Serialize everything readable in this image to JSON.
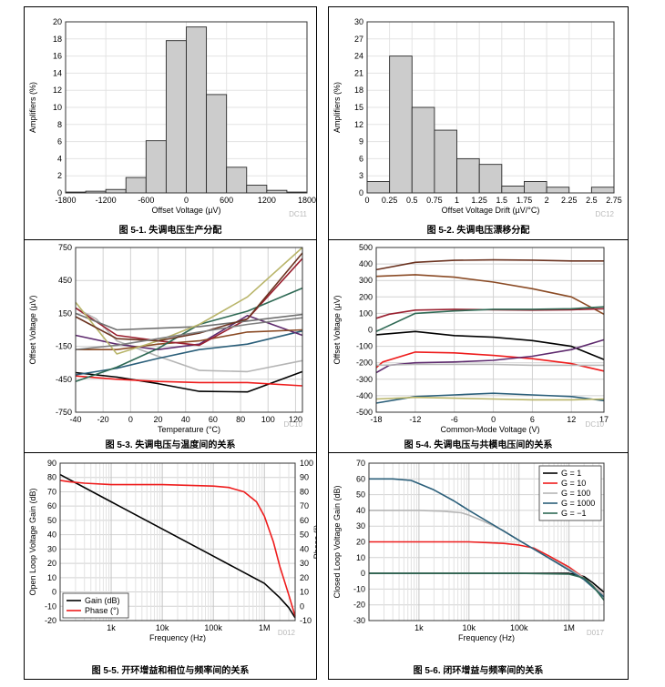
{
  "charts": [
    {
      "type": "bar",
      "name": "hist-offset",
      "title": "图 5-1. 失调电压生产分配",
      "xlabel": "Offset Voltage (µV)",
      "ylabel": "Amplifiers (%)",
      "watermark": "DC11",
      "bin_edges": [
        -1800,
        -1500,
        -1200,
        -900,
        -600,
        -300,
        0,
        300,
        600,
        900,
        1200,
        1500,
        1800
      ],
      "values": [
        0.1,
        0.2,
        0.4,
        1.8,
        6.1,
        17.8,
        19.4,
        11.5,
        3.0,
        0.9,
        0.3,
        0.1
      ],
      "xlim": [
        -1800,
        1800
      ],
      "ylim": [
        0,
        20
      ],
      "xticks": [
        -1800,
        -1200,
        -600,
        0,
        600,
        1200,
        1800
      ],
      "xtick_labels": [
        "-1800",
        "-1200",
        "-600",
        "0",
        "600",
        "1200",
        "1800"
      ],
      "yticks": [
        0,
        2,
        4,
        6,
        8,
        10,
        12,
        14,
        16,
        18,
        20
      ],
      "ytick_labels": [
        "0",
        "2",
        "4",
        "6",
        "8",
        "10",
        "12",
        "14",
        "16",
        "18",
        "20"
      ]
    },
    {
      "type": "bar",
      "name": "hist-drift",
      "title": "图 5-2. 失调电压漂移分配",
      "xlabel": "Offset Voltage Drift (µV/°C)",
      "ylabel": "Amplifiers (%)",
      "watermark": "DC12",
      "bin_edges": [
        0,
        0.25,
        0.5,
        0.75,
        1,
        1.25,
        1.5,
        1.75,
        2,
        2.25,
        2.5,
        2.75
      ],
      "values": [
        2,
        24,
        15,
        11,
        6,
        5,
        1.2,
        2,
        1,
        0,
        1
      ],
      "xlim": [
        0,
        2.75
      ],
      "ylim": [
        0,
        30
      ],
      "xticks": [
        0,
        0.25,
        0.5,
        0.75,
        1,
        1.25,
        1.5,
        1.75,
        2,
        2.25,
        2.5,
        2.75
      ],
      "xtick_labels": [
        "0",
        "0.25",
        "0.5",
        "0.75",
        "1",
        "1.25",
        "1.5",
        "1.75",
        "2",
        "2.25",
        "2.5",
        "2.75"
      ],
      "yticks": [
        0,
        3,
        6,
        9,
        12,
        15,
        18,
        21,
        24,
        27,
        30
      ],
      "ytick_labels": [
        "0",
        "3",
        "6",
        "9",
        "12",
        "15",
        "18",
        "21",
        "24",
        "27",
        "30"
      ]
    },
    {
      "type": "line",
      "name": "offset-vs-temp",
      "title": "图 5-3. 失调电压与温度间的关系",
      "xlabel": "Temperature (°C)",
      "ylabel": "Offset Voltage (µV)",
      "watermark": "DC10",
      "xlim": [
        -40,
        125
      ],
      "ylim": [
        -750,
        750
      ],
      "xticks": [
        -40,
        -20,
        0,
        20,
        40,
        60,
        80,
        100,
        120
      ],
      "xtick_labels": [
        "-40",
        "-20",
        "0",
        "20",
        "40",
        "60",
        "80",
        "100",
        "120"
      ],
      "yticks": [
        -750,
        -450,
        -150,
        150,
        450,
        750
      ],
      "ytick_labels": [
        "-750",
        "-450",
        "-150",
        "150",
        "450",
        "750"
      ],
      "series": [
        {
          "color": "#000000",
          "x": [
            -40,
            -10,
            20,
            50,
            85,
            125
          ],
          "y": [
            -390,
            -430,
            -490,
            -560,
            -565,
            -380
          ]
        },
        {
          "color": "#ee1c1c",
          "x": [
            -40,
            -10,
            20,
            50,
            85,
            125
          ],
          "y": [
            -420,
            -450,
            -470,
            -480,
            -480,
            -510
          ]
        },
        {
          "color": "#b5b5b5",
          "x": [
            -40,
            -25,
            -10,
            20,
            50,
            85,
            125
          ],
          "y": [
            200,
            100,
            -100,
            -240,
            -370,
            -380,
            -280
          ]
        },
        {
          "color": "#2b5f7a",
          "x": [
            -40,
            -10,
            20,
            50,
            85,
            125
          ],
          "y": [
            -410,
            -350,
            -260,
            -180,
            -130,
            -10
          ]
        },
        {
          "color": "#5e2a6e",
          "x": [
            -40,
            -10,
            20,
            50,
            85,
            125
          ],
          "y": [
            -50,
            -130,
            -180,
            -130,
            130,
            -50
          ]
        },
        {
          "color": "#8a4a24",
          "x": [
            -40,
            -10,
            20,
            50,
            85,
            125
          ],
          "y": [
            -180,
            -180,
            -130,
            -100,
            -20,
            0
          ]
        },
        {
          "color": "#9a2030",
          "x": [
            -40,
            -10,
            20,
            50,
            85,
            125
          ],
          "y": [
            200,
            -50,
            -100,
            -140,
            100,
            650
          ]
        },
        {
          "color": "#2f6a55",
          "x": [
            -40,
            -10,
            20,
            50,
            85,
            125
          ],
          "y": [
            -470,
            -340,
            -170,
            50,
            170,
            380
          ]
        },
        {
          "color": "#707070",
          "x": [
            -40,
            -10,
            20,
            50,
            85,
            125
          ],
          "y": [
            150,
            0,
            15,
            30,
            80,
            140
          ]
        },
        {
          "color": "#b9b56a",
          "x": [
            -40,
            -10,
            20,
            50,
            85,
            125
          ],
          "y": [
            250,
            -220,
            -100,
            50,
            300,
            750
          ]
        },
        {
          "color": "#6b3320",
          "x": [
            -40,
            -10,
            20,
            50,
            85,
            125
          ],
          "y": [
            120,
            -80,
            -100,
            -30,
            100,
            700
          ]
        },
        {
          "color": "#7f7f7f",
          "x": [
            -40,
            -10,
            20,
            50,
            85,
            125
          ],
          "y": [
            -180,
            -140,
            -80,
            -20,
            50,
            110
          ]
        }
      ]
    },
    {
      "type": "line",
      "name": "offset-vs-cm",
      "title": "图 5-4. 失调电压与共模电压间的关系",
      "xlabel": "Common-Mode Voltage (V)",
      "ylabel": "Offset Voltage (µV)",
      "watermark": "DC10",
      "xlim": [
        -18,
        17
      ],
      "ylim": [
        -500,
        500
      ],
      "xticks": [
        -18,
        -12,
        -6,
        0,
        6,
        12,
        17
      ],
      "xtick_labels": [
        "-18",
        "-12",
        "-6",
        "0",
        "6",
        "12",
        "17"
      ],
      "yticks": [
        -500,
        -400,
        -300,
        -200,
        -100,
        0,
        100,
        200,
        300,
        400,
        500
      ],
      "ytick_labels": [
        "-500",
        "-400",
        "-300",
        "-200",
        "-100",
        "0",
        "100",
        "200",
        "300",
        "400",
        "500"
      ],
      "series": [
        {
          "color": "#6b3320",
          "x": [
            -18,
            -12,
            -6,
            0,
            6,
            12,
            17
          ],
          "y": [
            365,
            410,
            422,
            425,
            423,
            418,
            418
          ]
        },
        {
          "color": "#8a4a24",
          "x": [
            -18,
            -12,
            -6,
            0,
            6,
            12,
            17
          ],
          "y": [
            325,
            335,
            320,
            290,
            250,
            200,
            95
          ]
        },
        {
          "color": "#9a2030",
          "x": [
            -18,
            -16,
            -12,
            -6,
            0,
            6,
            12,
            17
          ],
          "y": [
            70,
            95,
            120,
            125,
            122,
            120,
            122,
            128
          ]
        },
        {
          "color": "#2f6a55",
          "x": [
            -18,
            -12,
            -6,
            0,
            6,
            12,
            17
          ],
          "y": [
            -10,
            100,
            115,
            125,
            125,
            128,
            140
          ]
        },
        {
          "color": "#000000",
          "x": [
            -18,
            -12,
            -6,
            0,
            6,
            12,
            17
          ],
          "y": [
            -30,
            -10,
            -35,
            -45,
            -65,
            -100,
            -180
          ]
        },
        {
          "color": "#ee1c1c",
          "x": [
            -18,
            -17,
            -12,
            -6,
            0,
            6,
            12,
            17
          ],
          "y": [
            -230,
            -195,
            -135,
            -140,
            -155,
            -175,
            -205,
            -250
          ]
        },
        {
          "color": "#5e2a6e",
          "x": [
            -18,
            -16,
            -12,
            -6,
            0,
            6,
            12,
            17
          ],
          "y": [
            -260,
            -215,
            -200,
            -195,
            -185,
            -160,
            -120,
            -60
          ]
        },
        {
          "color": "#b9b9b9",
          "x": [
            -18,
            -12,
            -6,
            0,
            6,
            12,
            17
          ],
          "y": [
            -215,
            -210,
            -210,
            -210,
            -215,
            -215,
            -215
          ]
        },
        {
          "color": "#2b5f7a",
          "x": [
            -18,
            -12,
            -6,
            0,
            6,
            12,
            17
          ],
          "y": [
            -445,
            -405,
            -395,
            -385,
            -395,
            -405,
            -430
          ]
        },
        {
          "color": "#b9b56a",
          "x": [
            -18,
            -12,
            -6,
            0,
            6,
            12,
            17
          ],
          "y": [
            -420,
            -410,
            -415,
            -420,
            -425,
            -425,
            -420
          ]
        }
      ]
    },
    {
      "type": "line",
      "name": "open-loop",
      "title": "图 5-5. 开环增益和相位与频率间的关系",
      "xlabel": "Frequency (Hz)",
      "ylabel": "Open Loop Voltage Gain (dB)",
      "ylabel_right": "Phase (°)",
      "watermark": "D012",
      "xscale": "log",
      "xlim": [
        100,
        4000000
      ],
      "ylim": [
        -20,
        90
      ],
      "ylim_right": [
        -10,
        100
      ],
      "xticks": [
        1000,
        10000,
        100000,
        1000000
      ],
      "xtick_labels": [
        "1k",
        "10k",
        "100k",
        "1M"
      ],
      "yticks": [
        -20,
        -10,
        0,
        10,
        20,
        30,
        40,
        50,
        60,
        70,
        80,
        90
      ],
      "ytick_labels": [
        "-20",
        "-10",
        "0",
        "10",
        "20",
        "30",
        "40",
        "50",
        "60",
        "70",
        "80",
        "90"
      ],
      "yticks_right": [
        -10,
        0,
        10,
        20,
        30,
        40,
        50,
        60,
        70,
        80,
        90,
        100
      ],
      "ytick_labels_right": [
        "-10",
        "0",
        "10",
        "20",
        "30",
        "40",
        "50",
        "60",
        "70",
        "80",
        "90",
        "100"
      ],
      "legend": [
        "Gain (dB)",
        "Phase (°)"
      ],
      "series": [
        {
          "name": "Gain (dB)",
          "color": "#000000",
          "axis": "left",
          "x": [
            100,
            1000,
            10000,
            100000,
            1000000,
            2000000,
            3000000,
            4000000
          ],
          "y": [
            82,
            63,
            44,
            25,
            6,
            -4,
            -11,
            -18
          ]
        },
        {
          "name": "Phase (°)",
          "color": "#ee1c1c",
          "axis": "right",
          "x": [
            100,
            150,
            300,
            1000,
            10000,
            100000,
            200000,
            400000,
            700000,
            1000000,
            1500000,
            2000000,
            3000000,
            4000000
          ],
          "y": [
            88,
            87,
            86,
            85,
            85,
            84,
            83,
            80,
            73,
            63,
            45,
            28,
            8,
            -7
          ]
        }
      ]
    },
    {
      "type": "line",
      "name": "closed-loop",
      "title": "图 5-6. 闭环增益与频率间的关系",
      "xlabel": "Frequency (Hz)",
      "ylabel": "Closed Loop Voltage Gain (dB)",
      "watermark": "D017",
      "xscale": "log",
      "xlim": [
        100,
        5000000
      ],
      "ylim": [
        -30,
        70
      ],
      "xticks": [
        1000,
        10000,
        100000,
        1000000
      ],
      "xtick_labels": [
        "1k",
        "10k",
        "100k",
        "1M"
      ],
      "yticks": [
        -30,
        -20,
        -10,
        0,
        10,
        20,
        30,
        40,
        50,
        60,
        70
      ],
      "ytick_labels": [
        "-30",
        "-20",
        "-10",
        "0",
        "10",
        "20",
        "30",
        "40",
        "50",
        "60",
        "70"
      ],
      "legend": [
        "G = 1",
        "G = 10",
        "G = 100",
        "G = 1000",
        "G = −1"
      ],
      "series": [
        {
          "name": "G = 1",
          "color": "#000000",
          "x": [
            100,
            100000,
            1000000,
            2000000,
            3000000,
            5000000
          ],
          "y": [
            0,
            0,
            0,
            -2,
            -6,
            -12
          ]
        },
        {
          "name": "G = 10",
          "color": "#ee1c1c",
          "x": [
            100,
            10000,
            50000,
            100000,
            200000,
            400000,
            1000000,
            2000000,
            5000000
          ],
          "y": [
            20,
            20,
            19,
            18,
            16,
            11,
            4,
            -3,
            -14
          ]
        },
        {
          "name": "G = 100",
          "color": "#b5b5b5",
          "x": [
            100,
            1000,
            3000,
            7000,
            10000,
            20000,
            50000,
            100000,
            300000,
            1000000,
            2000000,
            5000000
          ],
          "y": [
            40,
            40,
            39.5,
            38.5,
            37,
            33,
            27,
            21,
            12,
            3,
            -3,
            -14
          ]
        },
        {
          "name": "G = 1000",
          "color": "#2b5f7a",
          "x": [
            100,
            300,
            700,
            1000,
            2000,
            5000,
            10000,
            30000,
            100000,
            300000,
            1000000,
            2000000,
            5000000
          ],
          "y": [
            60,
            60,
            59,
            57,
            53,
            46,
            40,
            31,
            21,
            12,
            2,
            -4,
            -15
          ]
        },
        {
          "name": "G = −1",
          "color": "#2f6a55",
          "x": [
            100,
            100000,
            1000000,
            2000000,
            3000000,
            5000000
          ],
          "y": [
            0,
            0,
            -0.5,
            -3,
            -8,
            -17
          ]
        }
      ]
    }
  ]
}
